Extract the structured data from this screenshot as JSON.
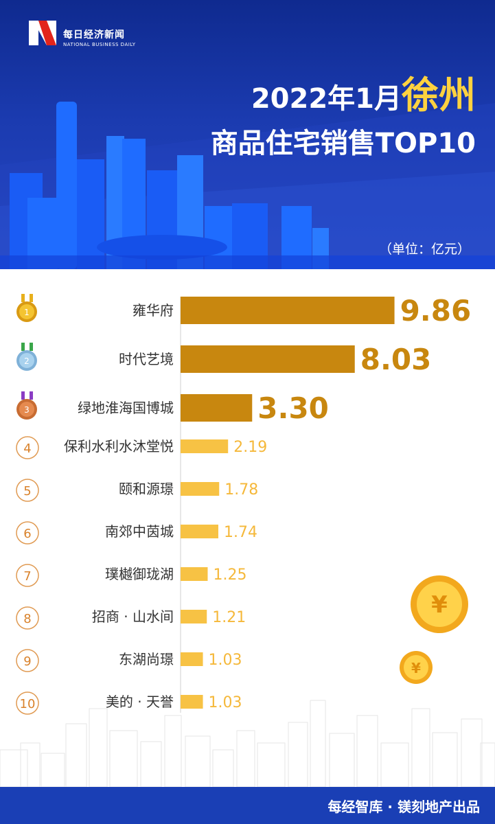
{
  "brand": {
    "name_cn": "每日经济新闻",
    "name_en": "NATIONAL BUSINESS DAILY"
  },
  "title": {
    "prefix": "2022年1月",
    "city": "徐州",
    "line2": "商品住宅销售TOP10"
  },
  "unit_note": "（单位：亿元）",
  "footer": "每经智库 · 镁刻地产出品",
  "colors": {
    "header_bg": "#1b3bb0",
    "city_highlight": "#ffd23f",
    "top3_bar": "#c8870f",
    "other_bar": "#f7c244",
    "footer_bg": "#1a3fb5"
  },
  "chart_data": {
    "type": "bar",
    "orientation": "horizontal",
    "unit": "亿元",
    "categories": [
      "雍华府",
      "时代艺境",
      "绿地淮海国博城",
      "保利水利水沐堂悦",
      "颐和源璟",
      "南郊中茵城",
      "璞樾御珑湖",
      "招商 · 山水间",
      "东湖尚璟",
      "美的 · 天誉"
    ],
    "values": [
      9.86,
      8.03,
      3.3,
      2.19,
      1.78,
      1.74,
      1.25,
      1.21,
      1.03,
      1.03
    ],
    "value_labels": [
      "9.86",
      "8.03",
      "3.30",
      "2.19",
      "1.78",
      "1.74",
      "1.25",
      "1.21",
      "1.03",
      "1.03"
    ],
    "ranks": [
      "1",
      "2",
      "3",
      "4",
      "5",
      "6",
      "7",
      "8",
      "9",
      "10"
    ],
    "medal_icons": [
      "gold-medal-icon",
      "silver-medal-icon",
      "bronze-medal-icon"
    ],
    "xlim": [
      0,
      10
    ]
  }
}
